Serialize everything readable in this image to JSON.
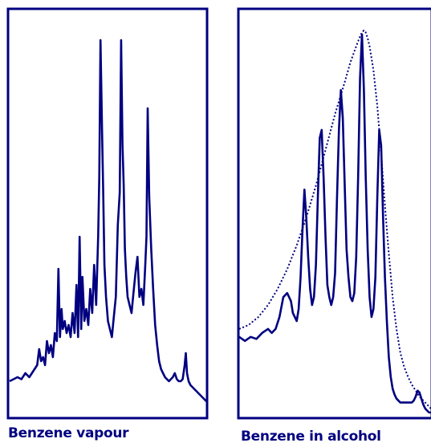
{
  "colors": {
    "line": "#000080",
    "frame": "#000080",
    "background": "#ffffff"
  },
  "chart_data": [
    {
      "type": "line",
      "title": "",
      "caption": "Benzene vapour",
      "xlabel": "",
      "ylabel": "",
      "axes_visible": false,
      "tick_labels": false,
      "grid": false,
      "xlim": [
        0,
        100
      ],
      "ylim": [
        0,
        100
      ],
      "series": [
        {
          "style": "solid",
          "x": [
            0,
            2,
            4,
            6,
            8,
            10,
            12,
            14,
            15,
            16,
            17,
            18,
            19,
            20,
            21,
            22,
            23,
            24,
            24.8,
            25.6,
            26.4,
            27,
            28,
            29,
            30,
            31,
            32,
            33,
            34,
            34.8,
            35.6,
            36.4,
            37,
            38,
            39,
            40,
            41,
            42,
            43,
            44,
            45,
            45.6,
            46.2,
            47,
            47.6,
            48.2,
            49,
            50,
            51,
            52,
            53,
            54,
            55,
            56,
            56.7,
            57.4,
            58,
            58.6,
            59.3,
            60,
            61,
            62,
            63,
            64,
            65,
            66,
            67,
            68,
            69,
            69.6,
            70.2,
            71,
            72,
            73,
            74,
            75,
            76,
            77,
            78,
            79,
            80,
            81,
            82,
            83,
            84,
            85,
            86,
            87,
            88,
            89,
            89.6,
            90.2,
            91,
            92,
            93,
            94,
            95,
            96,
            97,
            98,
            99,
            100
          ],
          "y": [
            9,
            9.5,
            10,
            9.5,
            11,
            10,
            11.5,
            13,
            17,
            14,
            15,
            13,
            19,
            16,
            18,
            15,
            21,
            19,
            37,
            20,
            27,
            22,
            24,
            21,
            23,
            20,
            26,
            21,
            33,
            20,
            45,
            22,
            35,
            24,
            27,
            23,
            32,
            26,
            38,
            28,
            45,
            60,
            94,
            72,
            56,
            38,
            30,
            24,
            22,
            20,
            25,
            30,
            48,
            56,
            94,
            68,
            58,
            42,
            35,
            30,
            28,
            26,
            31,
            36,
            40,
            30,
            32,
            28,
            38,
            45,
            77,
            55,
            42,
            32,
            23,
            18,
            14,
            12,
            11,
            10,
            9.5,
            9,
            9.5,
            10,
            11,
            9.5,
            9,
            9,
            9.5,
            13,
            16,
            11,
            9,
            8,
            7.5,
            7,
            6.5,
            6,
            5.5,
            5,
            4.5,
            4
          ]
        }
      ]
    },
    {
      "type": "line",
      "title": "",
      "caption": "Benzene in alcohol",
      "xlabel": "",
      "ylabel": "",
      "axes_visible": false,
      "tick_labels": false,
      "grid": false,
      "xlim": [
        0,
        100
      ],
      "ylim": [
        0,
        100
      ],
      "series": [
        {
          "style": "solid",
          "x": [
            0,
            3,
            6,
            9,
            12,
            15,
            17,
            19,
            21,
            23,
            25,
            27,
            28,
            29,
            30,
            31,
            32,
            33,
            34,
            35,
            36,
            37,
            38,
            39,
            40,
            41,
            42,
            43,
            44,
            45,
            46,
            47,
            48,
            49,
            50,
            51,
            52,
            53,
            54,
            55,
            56,
            57,
            58,
            59,
            60,
            61,
            62,
            63,
            64,
            65,
            66,
            67,
            68,
            69,
            70,
            71,
            72,
            73,
            74,
            75,
            76,
            77,
            78,
            79,
            80,
            81,
            82,
            83,
            84,
            85,
            86,
            87,
            88,
            89,
            90,
            91,
            92,
            93,
            94,
            95,
            96,
            97,
            98,
            99,
            100
          ],
          "y": [
            20,
            19,
            20,
            19.5,
            21,
            22,
            21,
            22,
            25,
            30,
            31,
            29,
            26,
            25,
            24,
            27,
            35,
            47,
            57,
            50,
            40,
            32,
            28,
            30,
            38,
            55,
            70,
            72,
            60,
            45,
            33,
            30,
            28,
            30,
            36,
            55,
            72,
            82,
            75,
            58,
            42,
            35,
            30,
            29,
            31,
            40,
            60,
            85,
            96,
            82,
            60,
            42,
            30,
            25,
            27,
            35,
            55,
            72,
            68,
            50,
            35,
            24,
            15,
            10,
            7,
            5.5,
            4.5,
            4,
            3.5,
            3.5,
            3.5,
            3.5,
            3.5,
            3.5,
            3.5,
            4,
            5,
            6.5,
            6,
            4.5,
            3,
            2,
            1.5,
            1,
            1
          ]
        },
        {
          "style": "dotted",
          "x": [
            0,
            5,
            10,
            15,
            20,
            25,
            30,
            35,
            40,
            45,
            50,
            55,
            58,
            61,
            63,
            64,
            65,
            66,
            67,
            68,
            70,
            72,
            74,
            76,
            78,
            80,
            82,
            84,
            86,
            88,
            90,
            92,
            94,
            96,
            98,
            100
          ],
          "y": [
            22,
            23,
            25,
            28,
            32,
            37,
            43,
            50,
            58,
            67,
            76,
            84,
            89,
            93,
            95.5,
            96.5,
            97,
            96.5,
            95,
            93,
            87,
            78,
            66,
            53,
            41,
            30,
            22,
            16,
            12.5,
            10,
            8,
            6.5,
            5,
            4,
            3,
            2
          ]
        }
      ]
    }
  ]
}
